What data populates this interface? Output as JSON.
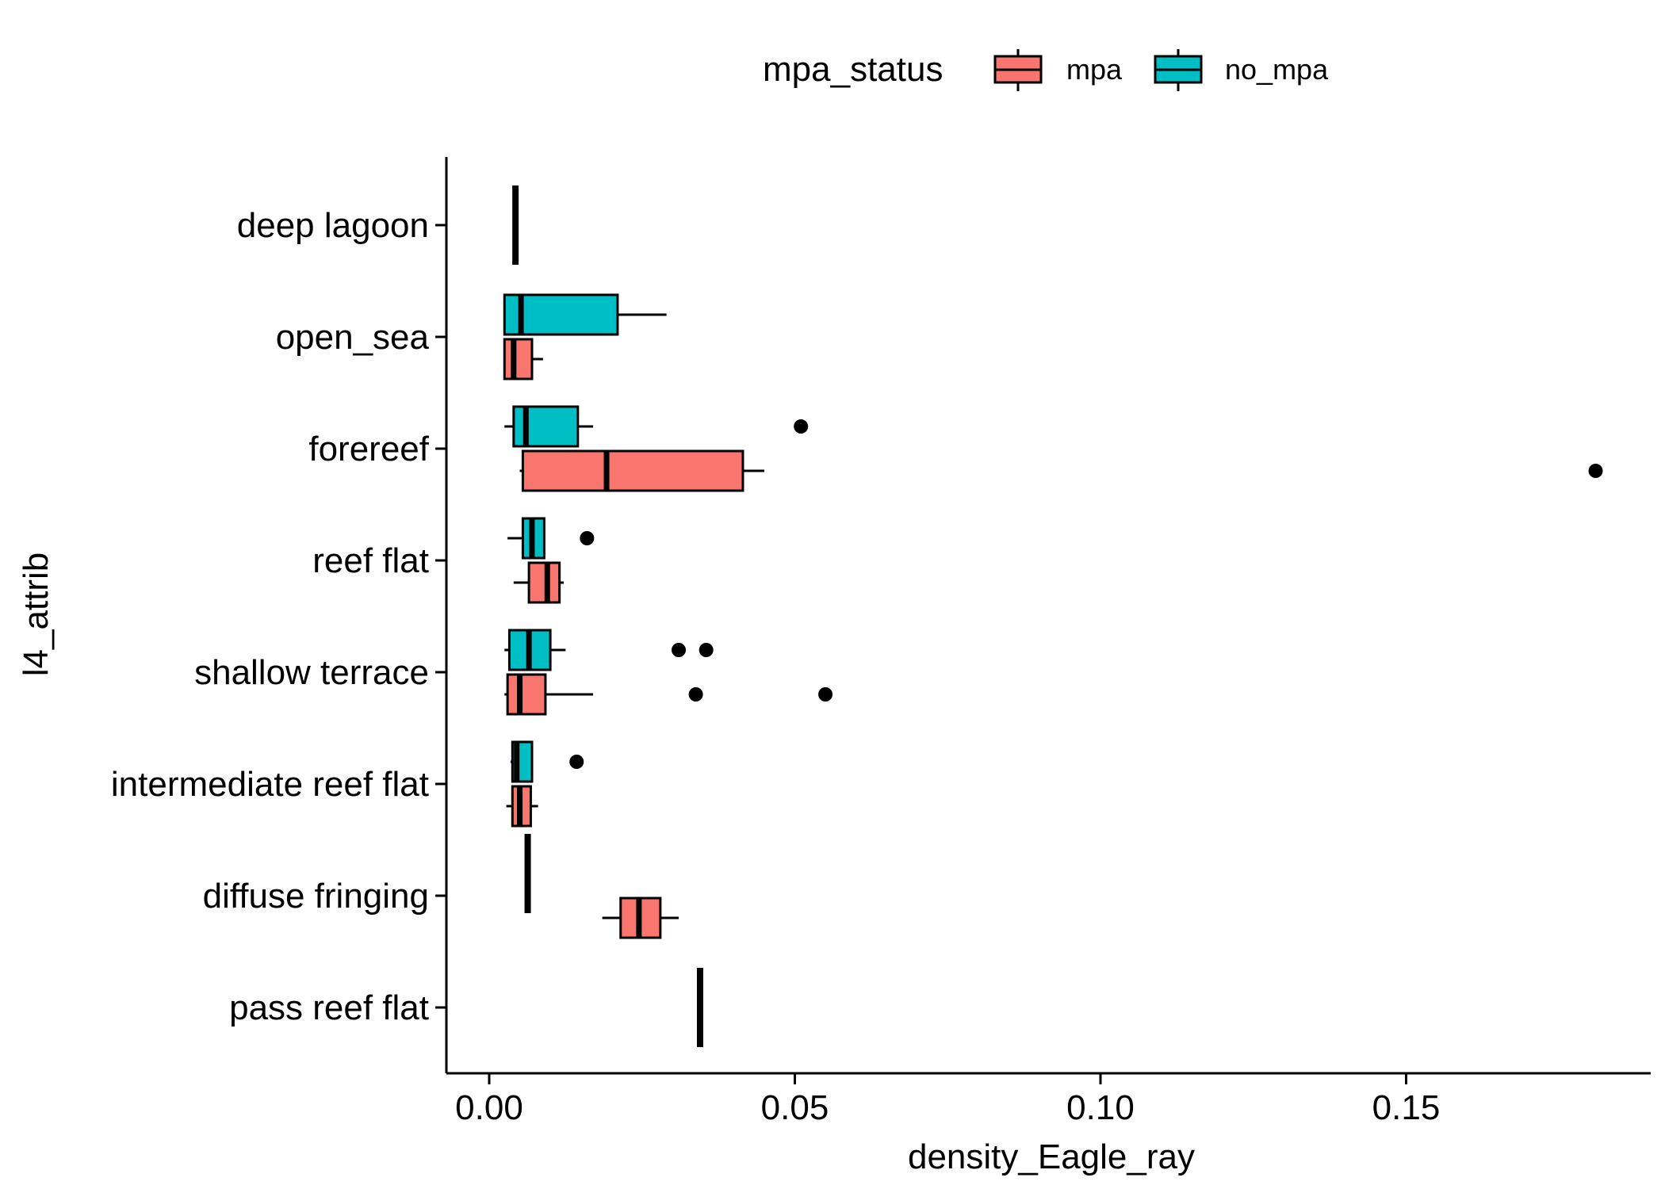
{
  "chart_data": {
    "type": "boxplot",
    "orientation": "horizontal",
    "xlabel": "density_Eagle_ray",
    "ylabel": "l4_attrib",
    "xlim": [
      -0.007,
      0.19
    ],
    "x_ticks": [
      0.0,
      0.05,
      0.1,
      0.15
    ],
    "x_tick_labels": [
      "0.00",
      "0.05",
      "0.10",
      "0.15"
    ],
    "categories": [
      "deep lagoon",
      "open_sea",
      "forereef",
      "reef flat",
      "shallow terrace",
      "intermediate reef flat",
      "diffuse fringing",
      "pass reef flat"
    ],
    "legend": {
      "title": "mpa_status",
      "position": "top",
      "entries": [
        {
          "name": "mpa",
          "color": "#F8766D"
        },
        {
          "name": "no_mpa",
          "color": "#00BFC4"
        }
      ]
    },
    "grid": false,
    "boxes": [
      {
        "category": "deep lagoon",
        "group": "single",
        "min": 0.0043,
        "q1": 0.0043,
        "median": 0.0043,
        "q3": 0.0043,
        "max": 0.0043,
        "outliers": []
      },
      {
        "category": "open_sea",
        "group": "no_mpa",
        "min": 0.0025,
        "q1": 0.0025,
        "median": 0.0052,
        "q3": 0.021,
        "max": 0.029,
        "outliers": []
      },
      {
        "category": "open_sea",
        "group": "mpa",
        "min": 0.0025,
        "q1": 0.0025,
        "median": 0.004,
        "q3": 0.007,
        "max": 0.0088,
        "outliers": []
      },
      {
        "category": "forereef",
        "group": "no_mpa",
        "min": 0.0025,
        "q1": 0.004,
        "median": 0.006,
        "q3": 0.0145,
        "max": 0.017,
        "outliers": [
          0.051
        ]
      },
      {
        "category": "forereef",
        "group": "mpa",
        "min": 0.005,
        "q1": 0.0055,
        "median": 0.0192,
        "q3": 0.0415,
        "max": 0.045,
        "outliers": [
          0.181
        ]
      },
      {
        "category": "reef flat",
        "group": "no_mpa",
        "min": 0.003,
        "q1": 0.0055,
        "median": 0.007,
        "q3": 0.009,
        "max": 0.009,
        "outliers": [
          0.016
        ]
      },
      {
        "category": "reef flat",
        "group": "mpa",
        "min": 0.004,
        "q1": 0.0065,
        "median": 0.0095,
        "q3": 0.0115,
        "max": 0.0122,
        "outliers": []
      },
      {
        "category": "shallow terrace",
        "group": "no_mpa",
        "min": 0.0025,
        "q1": 0.0033,
        "median": 0.0065,
        "q3": 0.01,
        "max": 0.0125,
        "outliers": [
          0.031,
          0.0355
        ]
      },
      {
        "category": "shallow terrace",
        "group": "mpa",
        "min": 0.0025,
        "q1": 0.003,
        "median": 0.005,
        "q3": 0.0092,
        "max": 0.017,
        "outliers": [
          0.0338,
          0.055
        ]
      },
      {
        "category": "intermediate reef flat",
        "group": "no_mpa",
        "min": 0.0035,
        "q1": 0.0038,
        "median": 0.0045,
        "q3": 0.007,
        "max": 0.007,
        "outliers": [
          0.0143
        ]
      },
      {
        "category": "intermediate reef flat",
        "group": "mpa",
        "min": 0.0028,
        "q1": 0.0038,
        "median": 0.005,
        "q3": 0.0068,
        "max": 0.008,
        "outliers": []
      },
      {
        "category": "diffuse fringing",
        "group": "no_mpa",
        "min": 0.0063,
        "q1": 0.0063,
        "median": 0.0063,
        "q3": 0.0063,
        "max": 0.0063,
        "outliers": []
      },
      {
        "category": "diffuse fringing",
        "group": "mpa",
        "min": 0.0185,
        "q1": 0.0215,
        "median": 0.0245,
        "q3": 0.028,
        "max": 0.031,
        "outliers": []
      },
      {
        "category": "pass reef flat",
        "group": "single",
        "min": 0.0345,
        "q1": 0.0345,
        "median": 0.0345,
        "q3": 0.0345,
        "max": 0.0345,
        "outliers": []
      }
    ]
  }
}
